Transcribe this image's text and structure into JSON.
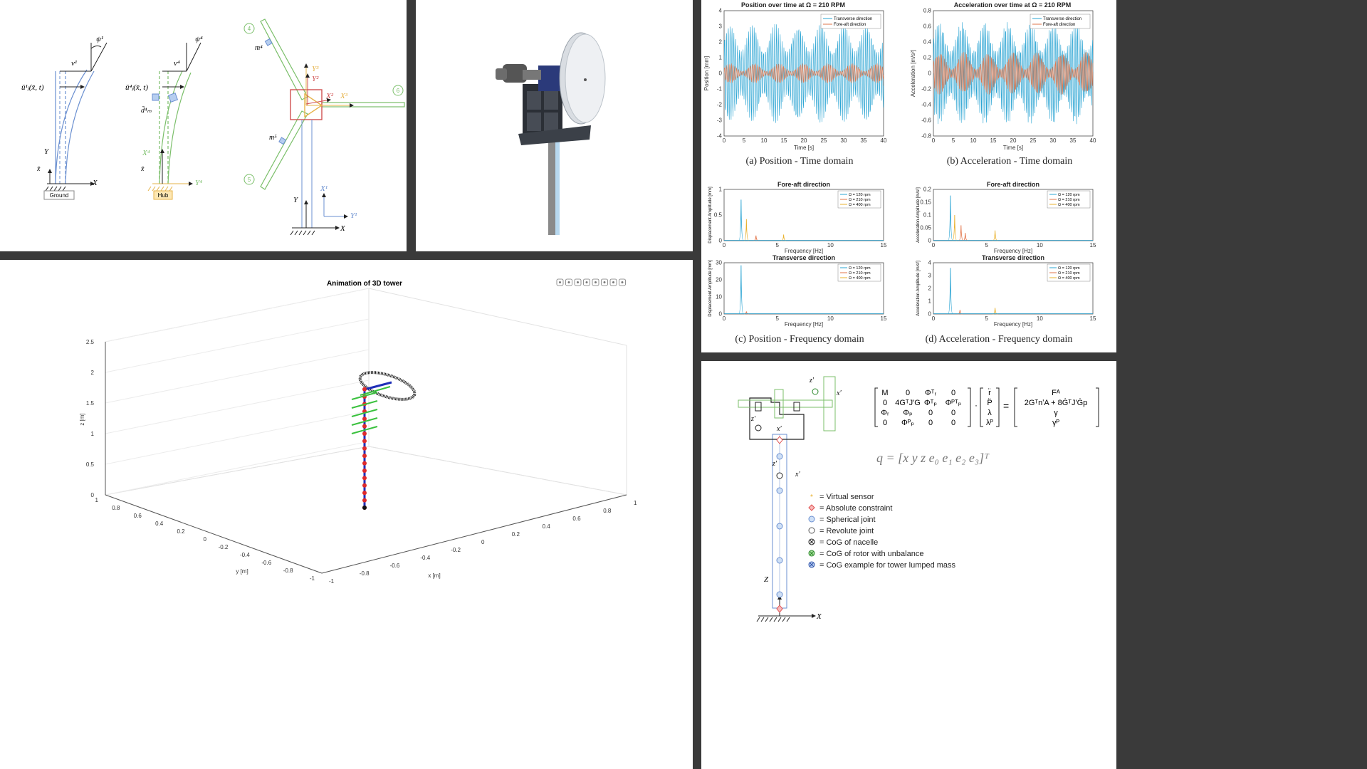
{
  "kinematics": {
    "ground_label": "Ground",
    "hub_label": "Hub",
    "labels": {
      "v1": "v¹",
      "psi1": "ψ¹",
      "v4": "v⁴",
      "psi4": "ψ⁴",
      "u1": "ū¹ⱼ(x̄, t)",
      "u4": "ū⁴ⱼ(x̄, t)",
      "dm4": "d̄⁴ₘ",
      "Y": "Y",
      "X": "X",
      "xbar": "x̄",
      "X4": "X⁴",
      "Y4": "Y⁴",
      "m4": "m⁴",
      "m5": "m⁵",
      "n4": "4",
      "n5": "5",
      "n6": "6",
      "Y3": "Y³",
      "Y2": "Y²",
      "X2": "X²",
      "X3": "X³",
      "X1": "X¹",
      "Y1": "Y¹"
    }
  },
  "tower3d": {
    "title": "Animation of 3D tower",
    "zlabel": "z [m]",
    "ylabel": "y [m]",
    "xlabel": "x [m]",
    "zticks": [
      "2.5",
      "2",
      "1.5",
      "1",
      "0.5",
      "0"
    ],
    "yticks": [
      "1",
      "0.8",
      "0.6",
      "0.4",
      "0.2",
      "0",
      "-0.2",
      "-0.4",
      "-0.6",
      "-0.8",
      "-1"
    ],
    "xticks": [
      "-1",
      "-0.8",
      "-0.6",
      "-0.4",
      "-0.2",
      "0",
      "0.2",
      "0.4",
      "0.6",
      "0.8",
      "1"
    ],
    "toolbar_icons": [
      "export-icon",
      "brush-icon",
      "datatip-icon",
      "rotate-icon",
      "pan-icon",
      "zoom-in-icon",
      "zoom-out-icon",
      "home-icon"
    ]
  },
  "plots": {
    "pos_time": {
      "title": "Position over time at Ω = 210 RPM",
      "xlabel": "Time [s]",
      "ylabel": "Position [mm]",
      "caption": "(a) Position - Time domain",
      "legend": [
        "Transverse direction",
        "Fore-aft direction"
      ],
      "xticks": [
        "0",
        "5",
        "10",
        "15",
        "20",
        "25",
        "30",
        "35",
        "40"
      ],
      "yticks": [
        "4",
        "3",
        "2",
        "1",
        "0",
        "-1",
        "-2",
        "-3",
        "-4"
      ]
    },
    "acc_time": {
      "title": "Acceleration over time at Ω = 210 RPM",
      "xlabel": "Time [s]",
      "ylabel": "Acceleration [m/s²]",
      "caption": "(b) Acceleration - Time domain",
      "legend": [
        "Transverse direction",
        "Fore-aft direction"
      ],
      "xticks": [
        "0",
        "5",
        "10",
        "15",
        "20",
        "25",
        "30",
        "35",
        "40"
      ],
      "yticks": [
        "0.8",
        "0.6",
        "0.4",
        "0.2",
        "0",
        "-0.2",
        "-0.4",
        "-0.6",
        "-0.8"
      ]
    },
    "pos_freq": {
      "fa_title": "Fore-aft direction",
      "tr_title": "Transverse direction",
      "xlabel": "Frequency [Hz]",
      "ylabel_fa": "Displacement Amplitude [mm]",
      "ylabel_tr": "Displacement Amplitude [mm]",
      "caption": "(c) Position - Frequency domain",
      "legend": [
        "Ω = 120 rpm",
        "Ω = 210 rpm",
        "Ω = 400 rpm"
      ],
      "xticks": [
        "0",
        "5",
        "10",
        "15"
      ],
      "yticks_fa": [
        "1",
        "0.5",
        "0"
      ],
      "yticks_tr": [
        "30",
        "20",
        "10",
        "0"
      ]
    },
    "acc_freq": {
      "fa_title": "Fore-aft direction",
      "tr_title": "Transverse direction",
      "xlabel": "Frequency [Hz]",
      "ylabel_fa": "Acceleration Amplitude [m/s²]",
      "ylabel_tr": "Acceleration Amplitude [m/s²]",
      "caption": "(d) Acceleration - Frequency domain",
      "legend": [
        "Ω = 120 rpm",
        "Ω = 210 rpm",
        "Ω = 400 rpm"
      ],
      "xticks": [
        "0",
        "5",
        "10",
        "15"
      ],
      "yticks_fa": [
        "0.2",
        "0.15",
        "0.1",
        "0.05",
        "0"
      ],
      "yticks_tr": [
        "4",
        "3",
        "2",
        "1",
        "0"
      ]
    }
  },
  "model": {
    "q_vector": "q = [x y z e₀ e₁ e₂ e₃]ᵀ",
    "legend": [
      {
        "symbol": "star",
        "label": "Virtual sensor"
      },
      {
        "symbol": "diamond",
        "label": "Absolute constraint"
      },
      {
        "symbol": "circle-blue",
        "label": "Spherical joint"
      },
      {
        "symbol": "circle-white",
        "label": "Revolute joint"
      },
      {
        "symbol": "cog-black",
        "label": "CoG of nacelle"
      },
      {
        "symbol": "cog-green",
        "label": "CoG of rotor with unbalance"
      },
      {
        "symbol": "cog-blue",
        "label": "CoG example for tower lumped mass"
      }
    ],
    "eq_lhs": [
      [
        "M",
        "0",
        "Φᵀᵣ",
        "0"
      ],
      [
        "0",
        "4GᵀJ′G",
        "Φᵀₚ",
        "Φᴾᵀₚ"
      ],
      [
        "Φᵣ",
        "Φₚ",
        "0",
        "0"
      ],
      [
        "0",
        "Φᴾₚ",
        "0",
        "0"
      ]
    ],
    "eq_vec": [
      "r̈",
      "P̈",
      "λ",
      "λᴾ"
    ],
    "eq_rhs": [
      "Fᴬ",
      "2GᵀnʹA + 8ĠᵀJ′Ġp",
      "γ",
      "γᴾ"
    ],
    "axis_labels": {
      "z": "z′",
      "x": "x′",
      "Z": "Z",
      "X": "X"
    }
  }
}
